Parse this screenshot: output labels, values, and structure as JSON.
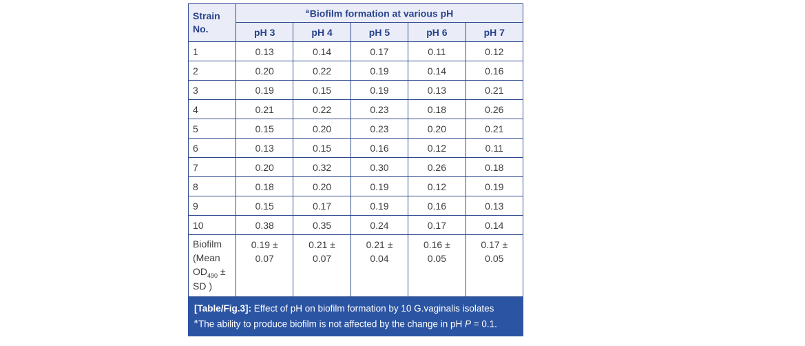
{
  "colors": {
    "border": "#2e4a8e",
    "header_bg": "#eaedf7",
    "header_text": "#27418c",
    "body_text": "#3d3d3d",
    "caption_bg": "#2b54a2"
  },
  "figure": {
    "table": {
      "strain_header": "Strain No.",
      "span_header_sup": "a",
      "span_header_text": "Biofilm formation at various pH",
      "ph_columns": [
        "pH 3",
        "pH 4",
        "pH 5",
        "pH 6",
        "pH 7"
      ],
      "rows": [
        {
          "strain": "1",
          "values": [
            "0.13",
            "0.14",
            "0.17",
            "0.11",
            "0.12"
          ]
        },
        {
          "strain": "2",
          "values": [
            "0.20",
            "0.22",
            "0.19",
            "0.14",
            "0.16"
          ]
        },
        {
          "strain": "3",
          "values": [
            "0.19",
            "0.15",
            "0.19",
            "0.13",
            "0.21"
          ]
        },
        {
          "strain": "4",
          "values": [
            "0.21",
            "0.22",
            "0.23",
            "0.18",
            "0.26"
          ]
        },
        {
          "strain": "5",
          "values": [
            "0.15",
            "0.20",
            "0.23",
            "0.20",
            "0.21"
          ]
        },
        {
          "strain": "6",
          "values": [
            "0.13",
            "0.15",
            "0.16",
            "0.12",
            "0.11"
          ]
        },
        {
          "strain": "7",
          "values": [
            "0.20",
            "0.32",
            "0.30",
            "0.26",
            "0.18"
          ]
        },
        {
          "strain": "8",
          "values": [
            "0.18",
            "0.20",
            "0.19",
            "0.12",
            "0.19"
          ]
        },
        {
          "strain": "9",
          "values": [
            "0.15",
            "0.17",
            "0.19",
            "0.16",
            "0.13"
          ]
        },
        {
          "strain": "10",
          "values": [
            "0.38",
            "0.35",
            "0.24",
            "0.17",
            "0.14"
          ]
        }
      ],
      "mean_row": {
        "label_pre": "Biofilm (Mean OD",
        "label_sub": "490",
        "label_post": " ± SD )",
        "values": [
          {
            "line1": "0.19 ±",
            "line2": "0.07"
          },
          {
            "line1": "0.21 ±",
            "line2": "0.07"
          },
          {
            "line1": "0.21 ±",
            "line2": "0.04"
          },
          {
            "line1": "0.16 ±",
            "line2": "0.05"
          },
          {
            "line1": "0.17 ±",
            "line2": "0.05"
          }
        ]
      }
    },
    "caption": {
      "label_bold": "[Table/Fig.3]:",
      "line1_rest": " Effect of pH on biofilm formation by 10 G.vaginalis isolates",
      "line2_sup": "a",
      "line2_pre": "The ability to produce biofilm is not affected by the change in pH ",
      "line2_italic": "P",
      "line2_post": " = 0.1."
    }
  },
  "chart_data": {
    "type": "table",
    "title": "Effect of pH on biofilm formation by 10 G.vaginalis isolates",
    "columns": [
      "Strain No.",
      "pH 3",
      "pH 4",
      "pH 5",
      "pH 6",
      "pH 7"
    ],
    "rows": [
      [
        1,
        0.13,
        0.14,
        0.17,
        0.11,
        0.12
      ],
      [
        2,
        0.2,
        0.22,
        0.19,
        0.14,
        0.16
      ],
      [
        3,
        0.19,
        0.15,
        0.19,
        0.13,
        0.21
      ],
      [
        4,
        0.21,
        0.22,
        0.23,
        0.18,
        0.26
      ],
      [
        5,
        0.15,
        0.2,
        0.23,
        0.2,
        0.21
      ],
      [
        6,
        0.13,
        0.15,
        0.16,
        0.12,
        0.11
      ],
      [
        7,
        0.2,
        0.32,
        0.3,
        0.26,
        0.18
      ],
      [
        8,
        0.18,
        0.2,
        0.19,
        0.12,
        0.19
      ],
      [
        9,
        0.15,
        0.17,
        0.19,
        0.16,
        0.13
      ],
      [
        10,
        0.38,
        0.35,
        0.24,
        0.17,
        0.14
      ]
    ],
    "mean_sd_row": [
      "Biofilm (Mean OD490 ± SD)",
      "0.19 ± 0.07",
      "0.21 ± 0.07",
      "0.21 ± 0.04",
      "0.16 ± 0.05",
      "0.17 ± 0.05"
    ],
    "footnote": "aThe ability to produce biofilm is not affected by the change in pH P = 0.1."
  }
}
